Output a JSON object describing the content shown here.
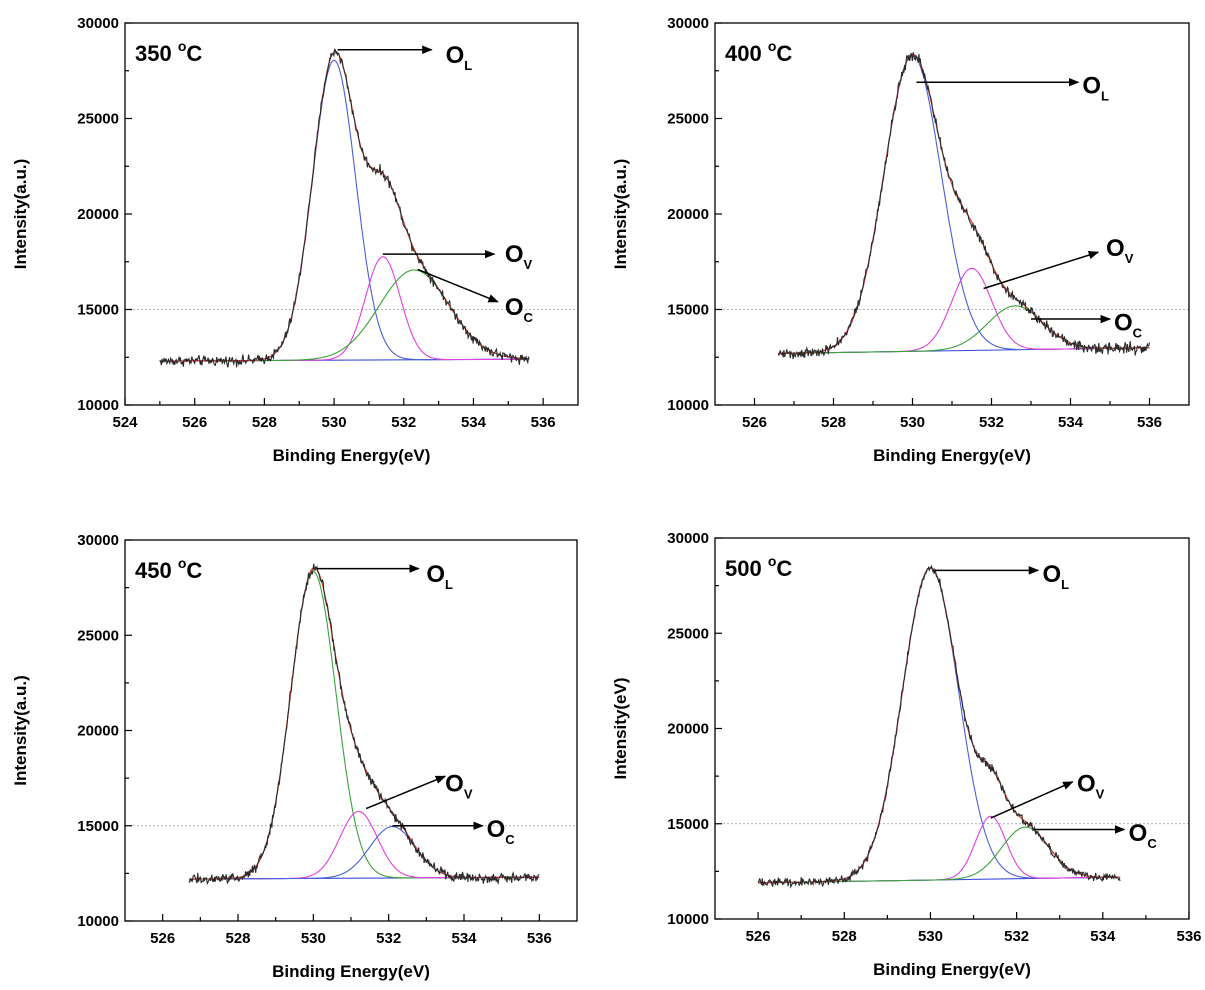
{
  "chart_data": [
    {
      "type": "line",
      "title": "350 °C",
      "title_main": "350 ",
      "title_degree": "o",
      "title_unit": "C",
      "xlabel": "Binding Energy(eV)",
      "ylabel": "Intensity(a.u.)",
      "xlim": [
        524,
        537
      ],
      "ylim": [
        10000,
        30000
      ],
      "xticks": [
        524,
        526,
        528,
        530,
        532,
        534,
        536
      ],
      "yticks": [
        10000,
        15000,
        20000,
        25000,
        30000
      ],
      "reference_line_y": 15000,
      "data_range": [
        525,
        535.6
      ],
      "baseline": [
        12300,
        12400
      ],
      "noise": 130,
      "peaks": [
        {
          "name": "O",
          "subscript": "L",
          "center": 530.0,
          "height": 15700,
          "sigma": 0.62
        },
        {
          "name": "O",
          "subscript": "V",
          "center": 531.4,
          "height": 5400,
          "sigma": 0.5
        },
        {
          "name": "O",
          "subscript": "C",
          "center": 532.3,
          "height": 4700,
          "sigma": 1.0
        }
      ],
      "annotations": [
        {
          "peak": 0,
          "from": [
            530.1,
            28600
          ],
          "to": [
            532.8,
            28600
          ],
          "label": "O",
          "sub": "L",
          "label_at": [
            533.2,
            27900
          ]
        },
        {
          "peak": 1,
          "from": [
            531.4,
            17900
          ],
          "to": [
            534.6,
            17900
          ],
          "label": "O",
          "sub": "V",
          "label_at": [
            534.9,
            17500
          ]
        },
        {
          "peak": 2,
          "from": [
            532.4,
            17100
          ],
          "to": [
            534.7,
            15400
          ],
          "label": "O",
          "sub": "C",
          "label_at": [
            534.9,
            14700
          ]
        }
      ]
    },
    {
      "type": "line",
      "title": "400 °C",
      "title_main": "400 ",
      "title_degree": "o",
      "title_unit": "C",
      "xlabel": "Binding Energy(eV)",
      "ylabel": "Intensity(a.u.)",
      "xlim": [
        525,
        537
      ],
      "ylim": [
        10000,
        30000
      ],
      "xticks": [
        526,
        528,
        530,
        532,
        534,
        536
      ],
      "yticks": [
        10000,
        15000,
        20000,
        25000,
        30000
      ],
      "reference_line_y": 15000,
      "data_range": [
        526.6,
        536
      ],
      "baseline": [
        12700,
        13000
      ],
      "noise": 140,
      "peaks": [
        {
          "name": "O",
          "subscript": "L",
          "center": 530.0,
          "height": 15500,
          "sigma": 0.72
        },
        {
          "name": "O",
          "subscript": "V",
          "center": 531.5,
          "height": 4300,
          "sigma": 0.5
        },
        {
          "name": "O",
          "subscript": "C",
          "center": 532.6,
          "height": 2300,
          "sigma": 0.7
        }
      ],
      "annotations": [
        {
          "peak": 0,
          "from": [
            530.1,
            26900
          ],
          "to": [
            534.2,
            26900
          ],
          "label": "O",
          "sub": "L",
          "label_at": [
            534.3,
            26300
          ]
        },
        {
          "peak": 1,
          "from": [
            531.8,
            16100
          ],
          "to": [
            534.7,
            18000
          ],
          "label": "O",
          "sub": "V",
          "label_at": [
            534.9,
            17800
          ]
        },
        {
          "peak": 2,
          "from": [
            533.0,
            14500
          ],
          "to": [
            535.0,
            14500
          ],
          "label": "O",
          "sub": "C",
          "label_at": [
            535.1,
            13900
          ]
        }
      ]
    },
    {
      "type": "line",
      "title": "450 °C",
      "title_main": "450 ",
      "title_degree": "o",
      "title_unit": "C",
      "xlabel": "Binding Energy(eV)",
      "ylabel": "Intensity(a.u.)",
      "xlim": [
        525,
        537
      ],
      "ylim": [
        10000,
        30000
      ],
      "xticks": [
        526,
        528,
        530,
        532,
        534,
        536
      ],
      "yticks": [
        10000,
        15000,
        20000,
        25000,
        30000
      ],
      "reference_line_y": 15000,
      "data_range": [
        526.7,
        536
      ],
      "baseline": [
        12200,
        12300
      ],
      "noise": 130,
      "peaks": [
        {
          "name": "O",
          "subscript": "L",
          "center": 530.0,
          "height": 16100,
          "sigma": 0.6
        },
        {
          "name": "O",
          "subscript": "V",
          "center": 531.2,
          "height": 3500,
          "sigma": 0.5
        },
        {
          "name": "O",
          "subscript": "C",
          "center": 532.1,
          "height": 2700,
          "sigma": 0.6
        }
      ],
      "annotations": [
        {
          "peak": 0,
          "from": [
            530.1,
            28500
          ],
          "to": [
            532.8,
            28500
          ],
          "label": "O",
          "sub": "L",
          "label_at": [
            533.0,
            27800
          ]
        },
        {
          "peak": 1,
          "from": [
            531.4,
            15900
          ],
          "to": [
            533.5,
            17600
          ],
          "label": "O",
          "sub": "V",
          "label_at": [
            533.5,
            16800
          ]
        },
        {
          "peak": 2,
          "from": [
            532.1,
            15000
          ],
          "to": [
            534.5,
            15000
          ],
          "label": "O",
          "sub": "C",
          "label_at": [
            534.6,
            14400
          ]
        }
      ]
    },
    {
      "type": "line",
      "title": "500 °C",
      "title_main": "500 ",
      "title_degree": "o",
      "title_unit": "C",
      "xlabel": "Binding Energy(eV)",
      "ylabel": "Intensity(eV)",
      "xlim": [
        525,
        536
      ],
      "ylim": [
        10000,
        30000
      ],
      "xticks": [
        526,
        528,
        530,
        532,
        534,
        536
      ],
      "yticks": [
        10000,
        15000,
        20000,
        25000,
        30000
      ],
      "reference_line_y": 15000,
      "data_range": [
        526,
        534.4
      ],
      "baseline": [
        11900,
        12200
      ],
      "noise": 110,
      "peaks": [
        {
          "name": "O",
          "subscript": "L",
          "center": 530.0,
          "height": 16400,
          "sigma": 0.65
        },
        {
          "name": "O",
          "subscript": "V",
          "center": 531.4,
          "height": 3300,
          "sigma": 0.35
        },
        {
          "name": "O",
          "subscript": "C",
          "center": 532.2,
          "height": 2700,
          "sigma": 0.55
        }
      ],
      "annotations": [
        {
          "peak": 0,
          "from": [
            530.1,
            28300
          ],
          "to": [
            532.5,
            28300
          ],
          "label": "O",
          "sub": "L",
          "label_at": [
            532.6,
            27700
          ]
        },
        {
          "peak": 1,
          "from": [
            531.4,
            15300
          ],
          "to": [
            533.3,
            17200
          ],
          "label": "O",
          "sub": "V",
          "label_at": [
            533.4,
            16700
          ]
        },
        {
          "peak": 2,
          "from": [
            532.4,
            14700
          ],
          "to": [
            534.5,
            14700
          ],
          "label": "O",
          "sub": "C",
          "label_at": [
            534.6,
            14100
          ]
        }
      ]
    }
  ],
  "colors": {
    "raw": "#2a2a2a",
    "fit": "#e0342c",
    "baseline": "#3b4fd6",
    "peak_L": "#4a5fd8",
    "peak_L_450": "#3aa33a",
    "peak_V": "#e23fe0",
    "peak_C": "#3aa33a",
    "peak_C_450": "#4a5fd8",
    "reference": "#9a9a9a"
  }
}
